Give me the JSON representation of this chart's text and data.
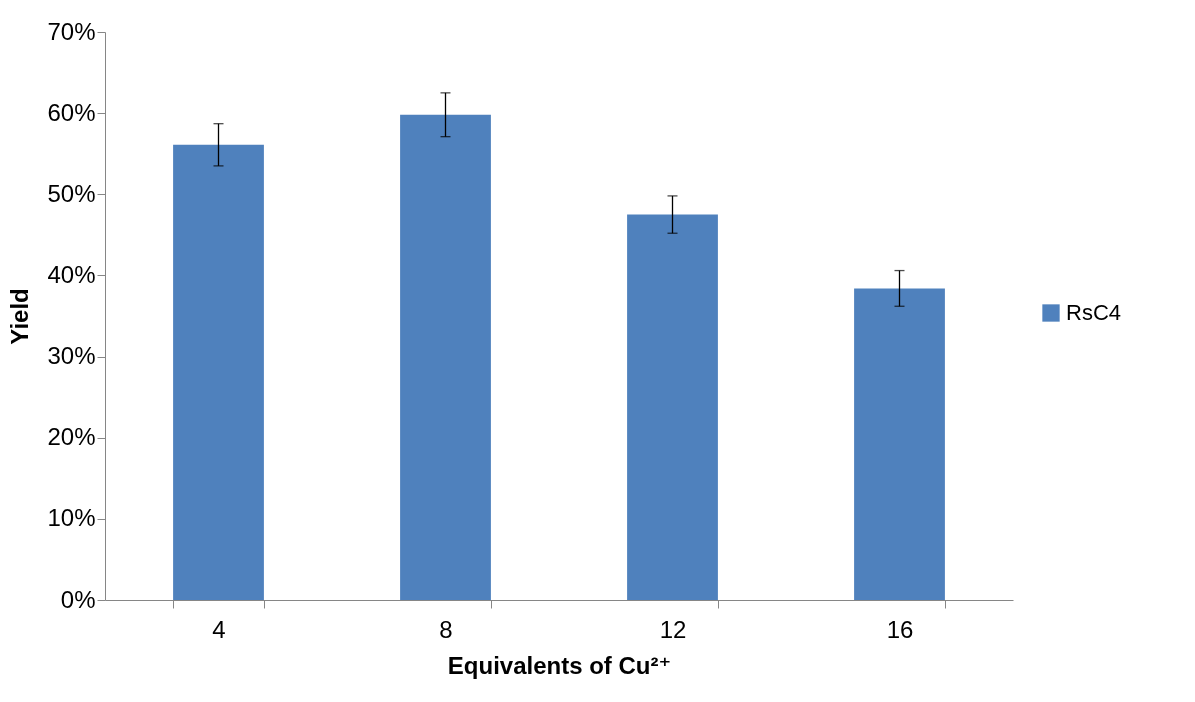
{
  "chart_data": {
    "type": "bar",
    "xlabel": "Equivalents of Cu²⁺",
    "ylabel": "Yield",
    "categories": [
      "4",
      "8",
      "12",
      "16"
    ],
    "series": [
      {
        "name": "RsC4",
        "color": "#4f81bd",
        "values": [
          56.1,
          59.8,
          47.5,
          38.4
        ],
        "errors": [
          2.6,
          2.7,
          2.3,
          2.2
        ]
      }
    ],
    "ylim": [
      0,
      70
    ],
    "yticks": [
      {
        "value": 0,
        "label": "0%"
      },
      {
        "value": 10,
        "label": "10%"
      },
      {
        "value": 20,
        "label": "20%"
      },
      {
        "value": 30,
        "label": "30%"
      },
      {
        "value": 40,
        "label": "40%"
      },
      {
        "value": 50,
        "label": "50%"
      },
      {
        "value": 60,
        "label": "60%"
      },
      {
        "value": 70,
        "label": "70%"
      }
    ],
    "legend": "right",
    "grid": false
  }
}
